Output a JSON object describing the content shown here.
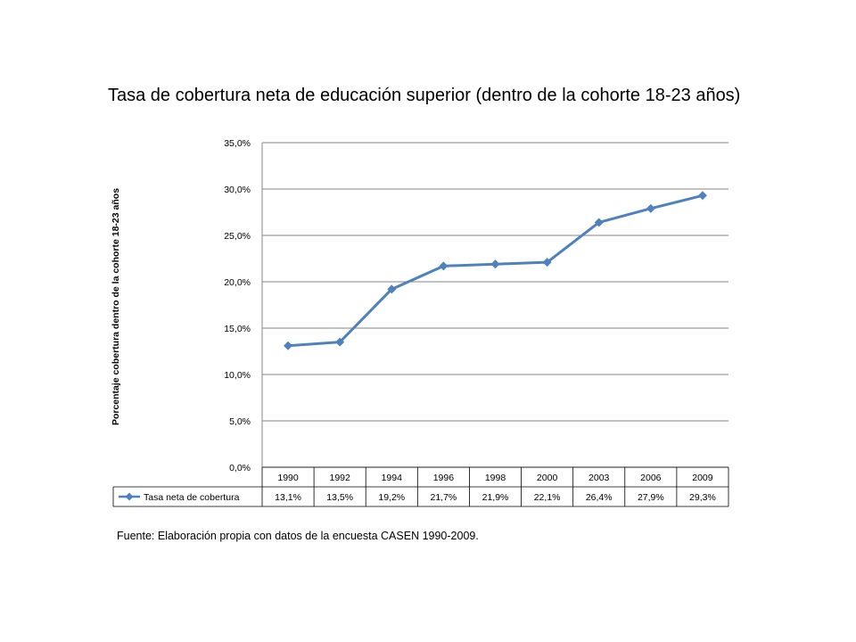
{
  "slide": {
    "title": "Tasa de cobertura neta de educación superior (dentro de la cohorte 18-23 años)",
    "source": "Fuente: Elaboración propia con datos de la encuesta CASEN 1990-2009."
  },
  "chart_data": {
    "type": "line",
    "title": "",
    "xlabel": "",
    "ylabel": "Porcentaje cobertura dentro de la cohorte 18-23 años",
    "categories": [
      "1990",
      "1992",
      "1994",
      "1996",
      "1998",
      "2000",
      "2003",
      "2006",
      "2009"
    ],
    "series": [
      {
        "name": "Tasa neta de cobertura",
        "values": [
          13.1,
          13.5,
          19.2,
          21.7,
          21.9,
          22.1,
          26.4,
          27.9,
          29.3
        ],
        "labels": [
          "13,1%",
          "13,5%",
          "19,2%",
          "21,7%",
          "21,9%",
          "22,1%",
          "26,4%",
          "27,9%",
          "29,3%"
        ],
        "color": "#4F81BD",
        "marker": "diamond"
      }
    ],
    "ylim": [
      0,
      35
    ],
    "yticks": [
      "0,0%",
      "5,0%",
      "10,0%",
      "15,0%",
      "20,0%",
      "25,0%",
      "30,0%",
      "35,0%"
    ],
    "ytick_values": [
      0,
      5,
      10,
      15,
      20,
      25,
      30,
      35
    ],
    "grid": true,
    "legend": "data-table",
    "gridline_color": "#868686"
  }
}
